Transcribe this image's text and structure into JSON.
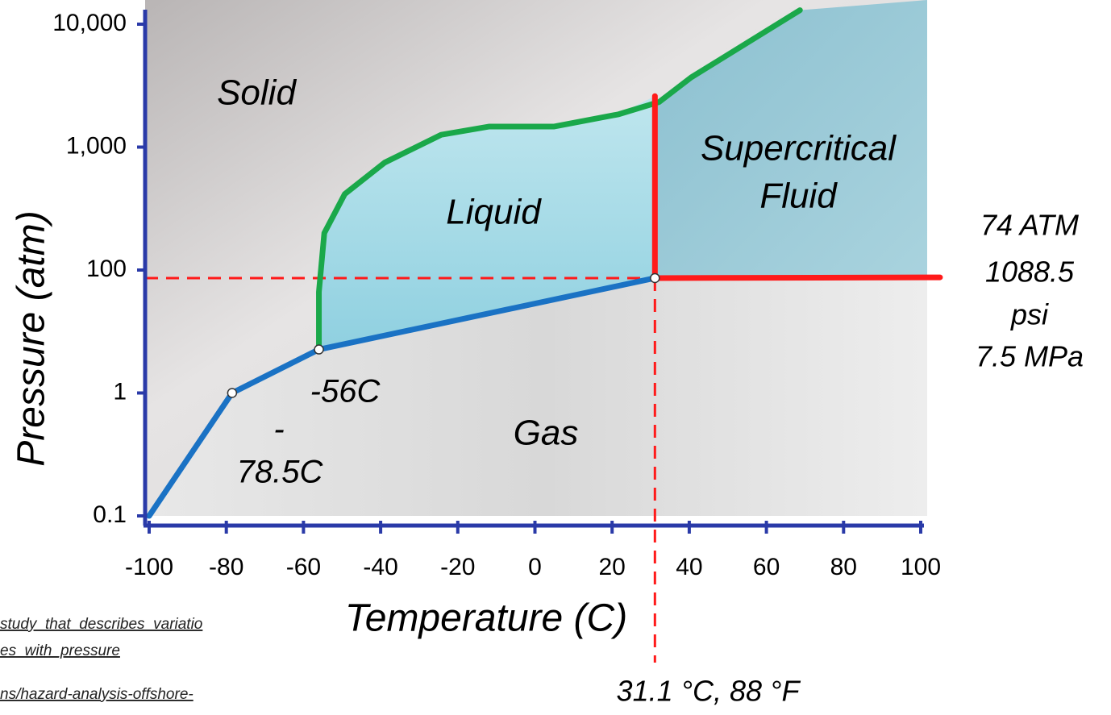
{
  "chart_data": {
    "type": "line",
    "x_label": "Temperature (C)",
    "y_label": "Pressure (atm)",
    "xlim": [
      -100,
      100
    ],
    "xticks": [
      -100,
      -80,
      -60,
      -40,
      -20,
      0,
      20,
      40,
      60,
      80,
      100
    ],
    "ylim": [
      0.1,
      10000
    ],
    "yticks": [
      0.1,
      1,
      100,
      {
        "value": 1000,
        "label": "1,000"
      },
      {
        "value": 10000,
        "label": "10,000"
      }
    ],
    "series": [
      {
        "color": "#1a72c4",
        "x": [
          -100,
          -78.5,
          -56,
          31.1
        ],
        "values": [
          0.1,
          1,
          5.1,
          74
        ]
      },
      {
        "color": "#1aa84a",
        "x": [
          -56,
          -56,
          -54.6,
          -49.3,
          -38.9,
          -24.3,
          -11.8,
          5,
          21.7,
          32.2,
          40.5,
          68.7
        ],
        "values": [
          5.1,
          44,
          200,
          415,
          750,
          1260,
          1470,
          1470,
          1850,
          2330,
          3690,
          13000
        ]
      },
      {
        "color": "#ff1a1a",
        "x": [
          31.1,
          31.1
        ],
        "values": [
          2600,
          74
        ]
      },
      {
        "color": "#ff1a1a",
        "x": [
          31.1,
          105
        ],
        "values": [
          74,
          76
        ]
      }
    ],
    "points": {
      "x": [
        -78.5,
        -56,
        31.1
      ],
      "values": [
        1,
        5.1,
        74
      ]
    },
    "reference_lines": {
      "color": "#ff1a1a",
      "x": 31.1,
      "y": 74
    },
    "annotations": [
      "Solid",
      "Liquid",
      "Supercritical",
      "Fluid",
      "Gas",
      "-56C",
      "-",
      "78.5C",
      "74 ATM",
      "1088.5",
      "psi",
      "7.5 MPa",
      "31.1 °C, 88 °F"
    ],
    "links": [
      "study_that_describes_variatio",
      "es_with_pressure",
      "ns/hazard-analysis-offshore-"
    ]
  }
}
